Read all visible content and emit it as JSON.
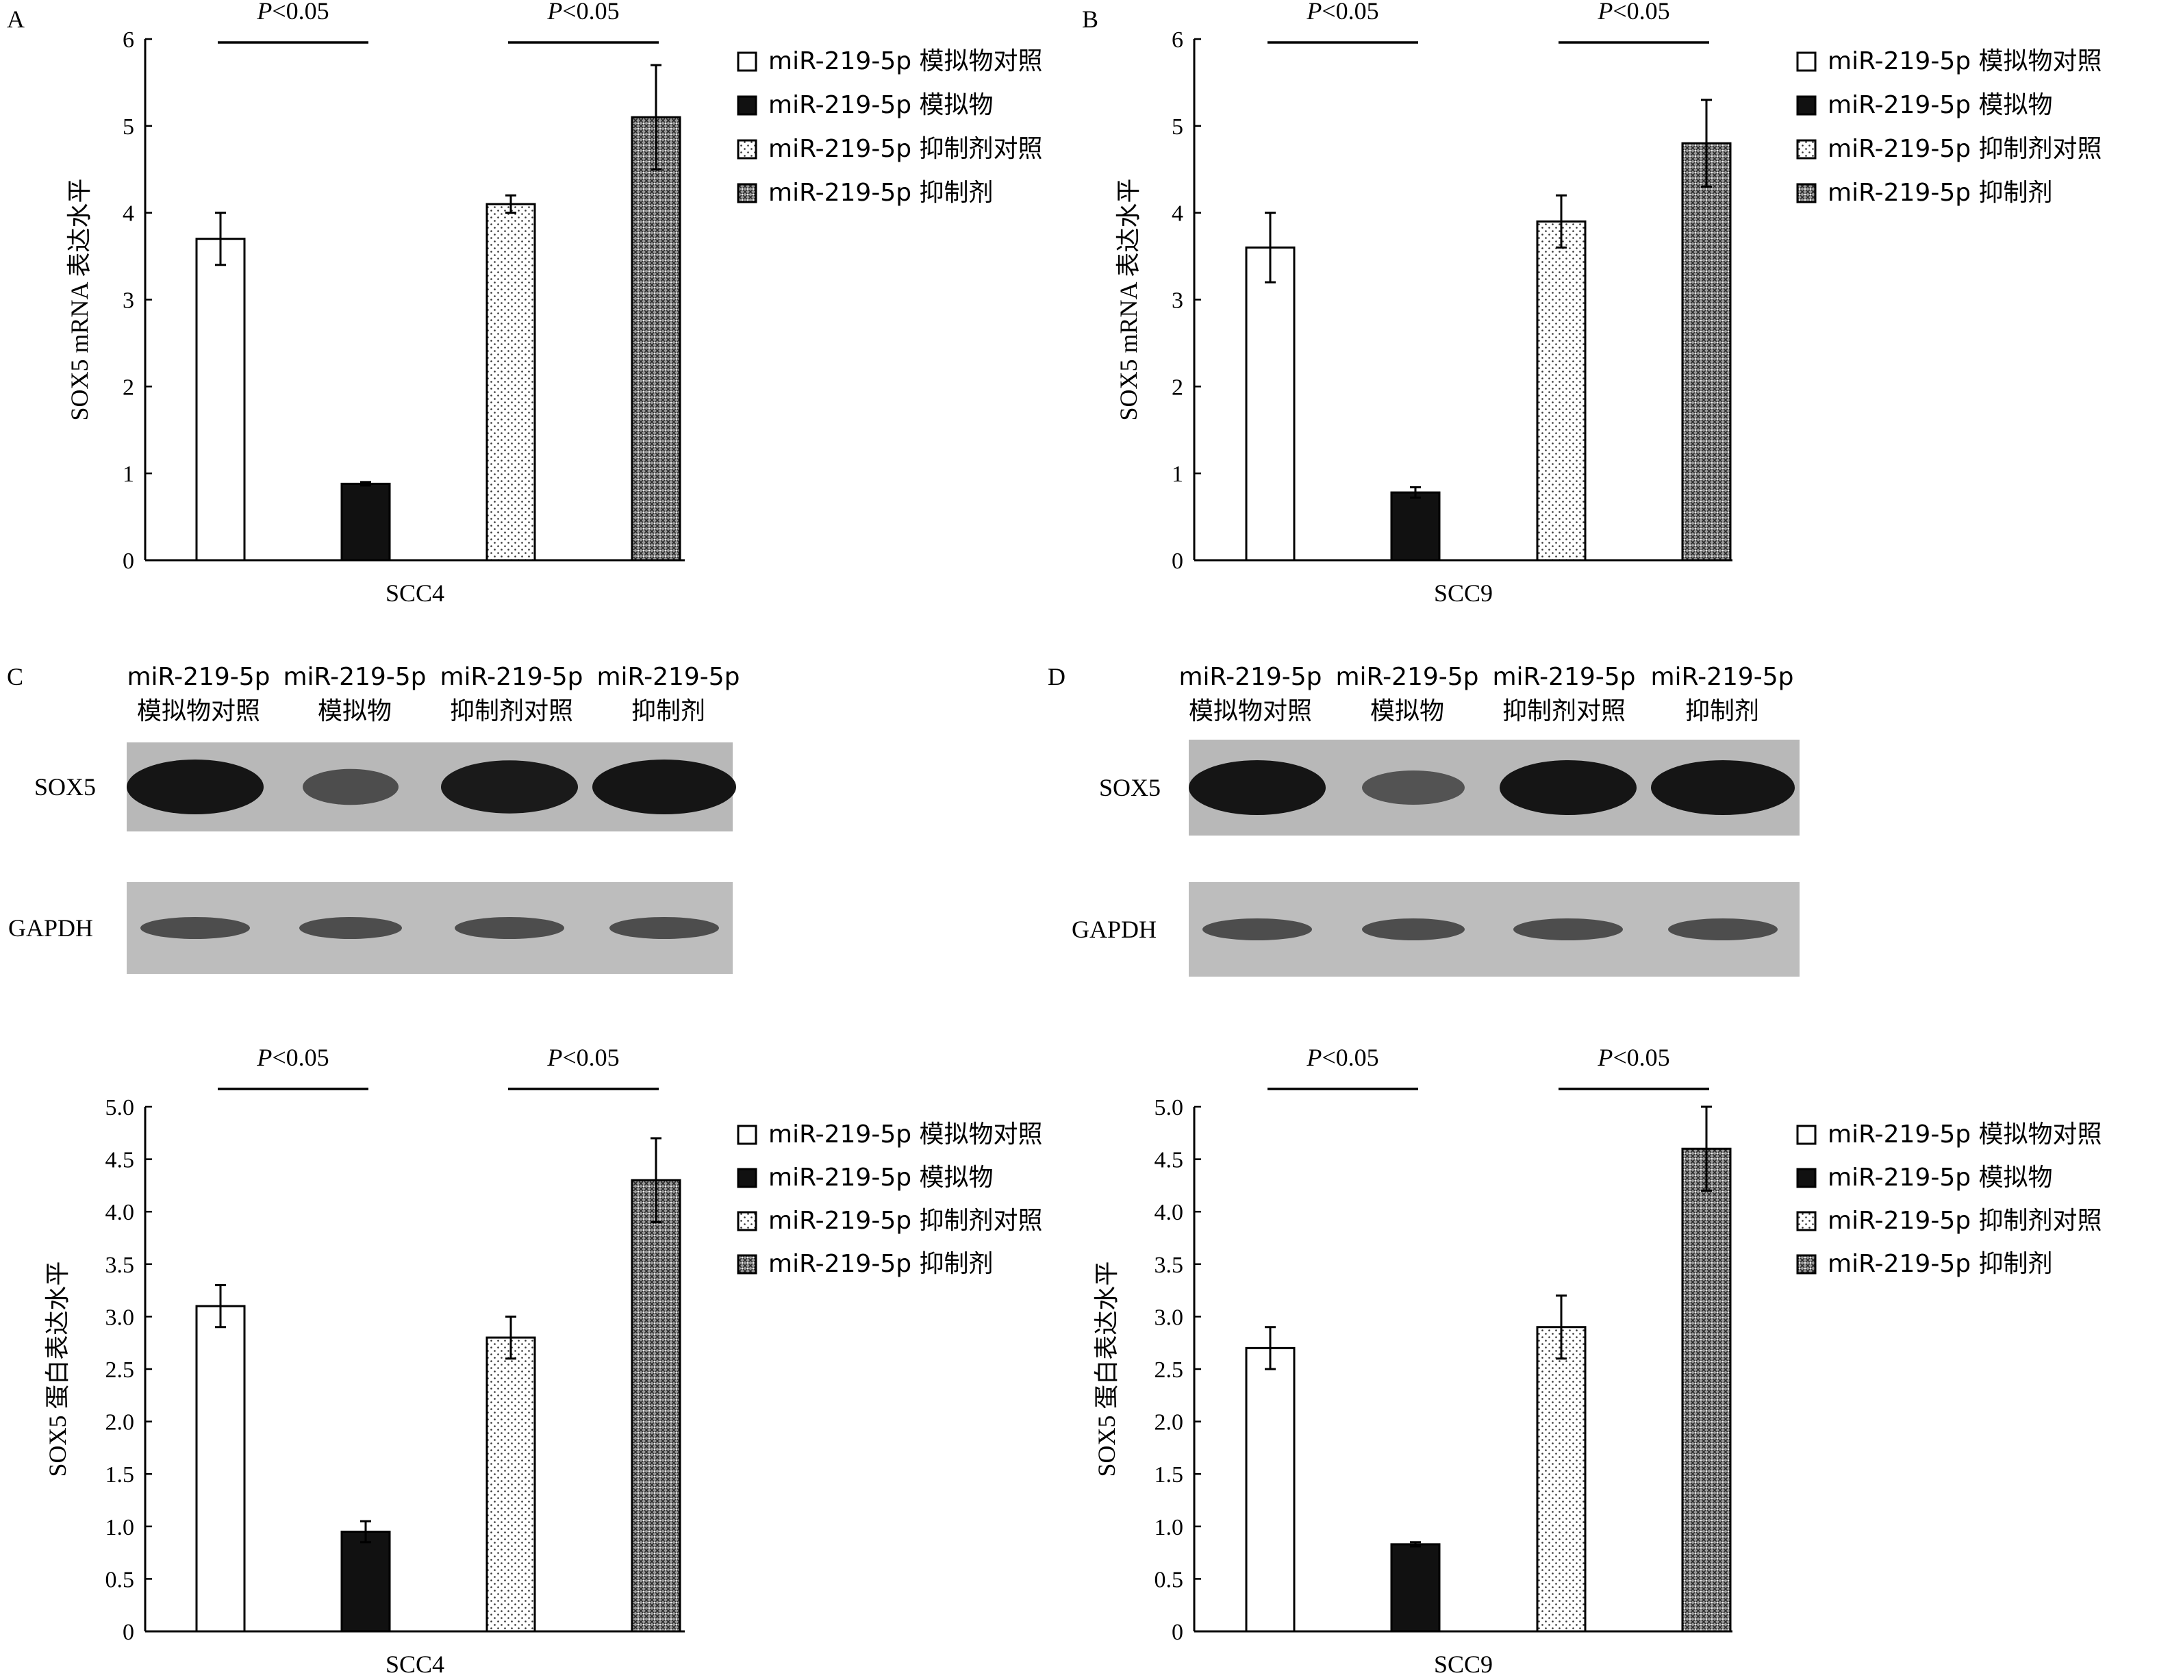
{
  "legend_labels": [
    "miR-219-5p 模拟物对照",
    "miR-219-5p 模拟物",
    "miR-219-5p 抑制剂对照",
    "miR-219-5p 抑制剂"
  ],
  "panels": {
    "A": {
      "letter": "A",
      "p1": "<0.05",
      "p2": "<0.05"
    },
    "B": {
      "letter": "B",
      "p1": "<0.05",
      "p2": "<0.05"
    },
    "C": {
      "letter": "C",
      "p1": "<0.05",
      "p2": "<0.05"
    },
    "D": {
      "letter": "D",
      "p1": "<0.05",
      "p2": "<0.05"
    }
  },
  "blots": {
    "C": {
      "lanes": [
        {
          "line1": "miR-219-5p",
          "line2": "模拟物对照"
        },
        {
          "line1": "miR-219-5p",
          "line2": "模拟物"
        },
        {
          "line1": "miR-219-5p",
          "line2": "抑制剂对照"
        },
        {
          "line1": "miR-219-5p",
          "line2": "抑制剂"
        }
      ],
      "rows": [
        "SOX5",
        "GAPDH"
      ],
      "sox5_band_intensity": [
        1.0,
        0.45,
        0.95,
        1.0
      ],
      "gapdh_band_intensity": [
        0.7,
        0.7,
        0.7,
        0.7
      ]
    },
    "D": {
      "lanes": [
        {
          "line1": "miR-219-5p",
          "line2": "模拟物对照"
        },
        {
          "line1": "miR-219-5p",
          "line2": "模拟物"
        },
        {
          "line1": "miR-219-5p",
          "line2": "抑制剂对照"
        },
        {
          "line1": "miR-219-5p",
          "line2": "抑制剂"
        }
      ],
      "rows": [
        "SOX5",
        "GAPDH"
      ],
      "sox5_band_intensity": [
        1.0,
        0.4,
        1.0,
        1.0
      ],
      "gapdh_band_intensity": [
        0.7,
        0.7,
        0.7,
        0.7
      ]
    }
  },
  "chart_data": [
    {
      "type": "bar",
      "panel": "A",
      "ylabel": "SOX5 mRNA 表达水平",
      "xlabel": "SCC4",
      "ylim": [
        0,
        6
      ],
      "yticks": [
        "0",
        "1",
        "2",
        "3",
        "4",
        "5",
        "6"
      ],
      "values": [
        3.7,
        0.88,
        4.1,
        5.1
      ],
      "errors": [
        0.3,
        0.02,
        0.1,
        0.6
      ],
      "significance": [
        "P<0.05",
        "P<0.05"
      ]
    },
    {
      "type": "bar",
      "panel": "B",
      "ylabel": "SOX5 mRNA 表达水平",
      "xlabel": "SCC9",
      "ylim": [
        0,
        6
      ],
      "yticks": [
        "0",
        "1",
        "2",
        "3",
        "4",
        "5",
        "6"
      ],
      "values": [
        3.6,
        0.78,
        3.9,
        4.8
      ],
      "errors": [
        0.4,
        0.06,
        0.3,
        0.5
      ],
      "significance": [
        "P<0.05",
        "P<0.05"
      ]
    },
    {
      "type": "bar",
      "panel": "C",
      "ylabel": "SOX5 蛋白表达水平",
      "xlabel": "SCC4",
      "ylim": [
        0,
        5
      ],
      "yticks": [
        "0",
        "0.5",
        "1.0",
        "1.5",
        "2.0",
        "2.5",
        "3.0",
        "3.5",
        "4.0",
        "4.5",
        "5.0"
      ],
      "values": [
        3.1,
        0.95,
        2.8,
        4.3
      ],
      "errors": [
        0.2,
        0.1,
        0.2,
        0.4
      ],
      "significance": [
        "P<0.05",
        "P<0.05"
      ]
    },
    {
      "type": "bar",
      "panel": "D",
      "ylabel": "SOX5 蛋白表达水平",
      "xlabel": "SCC9",
      "ylim": [
        0,
        5
      ],
      "yticks": [
        "0",
        "0.5",
        "1.0",
        "1.5",
        "2.0",
        "2.5",
        "3.0",
        "3.5",
        "4.0",
        "4.5",
        "5.0"
      ],
      "values": [
        2.7,
        0.83,
        2.9,
        4.6
      ],
      "errors": [
        0.2,
        0.02,
        0.3,
        0.4
      ],
      "significance": [
        "P<0.05",
        "P<0.05"
      ]
    }
  ]
}
